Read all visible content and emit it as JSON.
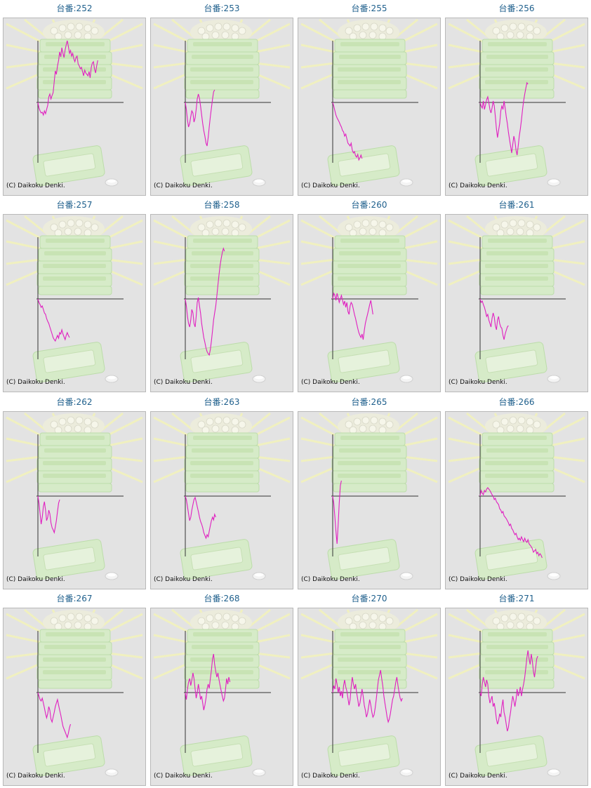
{
  "copyright": "(C) Daikoku Denki.",
  "line_color": "#e020c0",
  "chart_data": [
    {
      "type": "line",
      "title": "台番:252",
      "values": [
        0,
        -8,
        -12,
        -15,
        -14,
        -18,
        -12,
        -16,
        -10,
        -4,
        8,
        12,
        5,
        10,
        14,
        30,
        45,
        40,
        52,
        60,
        72,
        65,
        78,
        70,
        64,
        75,
        82,
        88,
        80,
        70,
        74,
        66,
        70,
        62,
        58,
        64,
        66,
        55,
        52,
        48,
        50,
        44,
        38,
        46,
        42,
        40,
        38,
        44,
        35,
        50,
        56,
        58,
        48,
        42,
        52,
        60
      ]
    },
    {
      "type": "line",
      "title": "台番:253",
      "values": [
        0,
        -10,
        -25,
        -35,
        -30,
        -20,
        -12,
        -15,
        -28,
        -22,
        -10,
        5,
        12,
        6,
        -5,
        -18,
        -30,
        -40,
        -48,
        -58,
        -62,
        -50,
        -35,
        -20,
        -8,
        5,
        15,
        18
      ]
    },
    {
      "type": "line",
      "title": "台番:255",
      "values": [
        0,
        -5,
        -12,
        -18,
        -22,
        -25,
        -28,
        -32,
        -35,
        -40,
        -42,
        -48,
        -45,
        -52,
        -58,
        -60,
        -62,
        -58,
        -68,
        -72,
        -70,
        -76,
        -78,
        -74,
        -82,
        -79,
        -75,
        -80
      ]
    },
    {
      "type": "line",
      "title": "台番:256",
      "values": [
        0,
        -5,
        -8,
        2,
        -10,
        -3,
        4,
        8,
        0,
        -10,
        -15,
        -8,
        2,
        -5,
        -20,
        -38,
        -50,
        -40,
        -30,
        -12,
        -5,
        -10,
        2,
        -8,
        -20,
        -30,
        -42,
        -52,
        -62,
        -72,
        -60,
        -48,
        -55,
        -68,
        -75,
        -62,
        -48,
        -38,
        -25,
        -10,
        2,
        12,
        20,
        28,
        26
      ]
    },
    {
      "type": "line",
      "title": "台番:257",
      "values": [
        0,
        -5,
        -8,
        -12,
        -10,
        -15,
        -20,
        -22,
        -28,
        -32,
        -35,
        -40,
        -45,
        -50,
        -55,
        -58,
        -60,
        -56,
        -52,
        -56,
        -48,
        -50,
        -44,
        -50,
        -54,
        -58,
        -52,
        -48,
        -52,
        -55
      ]
    },
    {
      "type": "line",
      "title": "台番:258",
      "values": [
        0,
        -10,
        -25,
        -35,
        -40,
        -30,
        -15,
        -20,
        -35,
        -40,
        -25,
        -5,
        2,
        -10,
        -20,
        -35,
        -45,
        -55,
        -62,
        -70,
        -75,
        -78,
        -80,
        -72,
        -60,
        -45,
        -30,
        -20,
        -10,
        5,
        20,
        35,
        48,
        58,
        66,
        72,
        68
      ]
    },
    {
      "type": "line",
      "title": "台番:260",
      "values": [
        0,
        8,
        5,
        -2,
        8,
        2,
        -5,
        0,
        5,
        -2,
        -8,
        -3,
        -12,
        -5,
        -18,
        -22,
        -10,
        -5,
        -8,
        -15,
        -22,
        -28,
        -35,
        -42,
        -48,
        -52,
        -55,
        -50,
        -58,
        -45,
        -35,
        -28,
        -22,
        -15,
        -8,
        -2,
        -12,
        -22
      ]
    },
    {
      "type": "line",
      "title": "台番:261",
      "values": [
        0,
        -5,
        -3,
        -8,
        -12,
        -18,
        -25,
        -22,
        -30,
        -35,
        -40,
        -28,
        -20,
        -26,
        -38,
        -44,
        -30,
        -25,
        -35,
        -40,
        -42,
        -52,
        -58,
        -50,
        -45,
        -40,
        -38
      ]
    },
    {
      "type": "line",
      "title": "台番:262",
      "values": [
        0,
        -10,
        -25,
        -40,
        -30,
        -15,
        -8,
        -20,
        -35,
        -30,
        -20,
        -25,
        -38,
        -45,
        -48,
        -52,
        -44,
        -35,
        -22,
        -10,
        -5
      ]
    },
    {
      "type": "line",
      "title": "台番:263",
      "values": [
        0,
        -5,
        -15,
        -25,
        -35,
        -30,
        -20,
        -12,
        -5,
        -2,
        -8,
        -15,
        -22,
        -30,
        -36,
        -40,
        -45,
        -52,
        -56,
        -60,
        -55,
        -58,
        -50,
        -42,
        -35,
        -30,
        -34,
        -26,
        -30
      ]
    },
    {
      "type": "line",
      "title": "台番:265",
      "values": [
        0,
        -10,
        -30,
        -50,
        -68,
        -40,
        -10,
        15,
        22
      ]
    },
    {
      "type": "line",
      "title": "台番:266",
      "values": [
        0,
        8,
        4,
        2,
        8,
        6,
        10,
        12,
        10,
        8,
        5,
        2,
        0,
        -5,
        -3,
        -8,
        -10,
        -12,
        -18,
        -20,
        -24,
        -22,
        -28,
        -30,
        -32,
        -35,
        -38,
        -42,
        -40,
        -46,
        -48,
        -52,
        -55,
        -53,
        -58,
        -62,
        -60,
        -63,
        -58,
        -62,
        -65,
        -60,
        -64,
        -66,
        -62,
        -68,
        -70,
        -72,
        -75,
        -80,
        -78,
        -76,
        -82,
        -80,
        -85,
        -82,
        -84,
        -88
      ]
    },
    {
      "type": "line",
      "title": "台番:267",
      "values": [
        0,
        -5,
        -10,
        -12,
        -8,
        -15,
        -22,
        -30,
        -36,
        -30,
        -20,
        -25,
        -38,
        -42,
        -35,
        -28,
        -20,
        -15,
        -10,
        -18,
        -25,
        -32,
        -40,
        -48,
        -52,
        -56,
        -60,
        -64,
        -58,
        -50,
        -45
      ]
    },
    {
      "type": "line",
      "title": "台番:268",
      "values": [
        0,
        -10,
        5,
        15,
        20,
        10,
        18,
        28,
        20,
        5,
        -8,
        0,
        12,
        2,
        -10,
        -5,
        -15,
        -25,
        -18,
        -8,
        5,
        12,
        6,
        20,
        32,
        48,
        55,
        40,
        30,
        22,
        28,
        18,
        10,
        2,
        -5,
        -12,
        -8,
        5,
        20,
        12,
        22,
        15
      ]
    },
    {
      "type": "line",
      "title": "台番:270",
      "values": [
        0,
        10,
        5,
        20,
        12,
        0,
        8,
        -5,
        2,
        -8,
        10,
        18,
        8,
        2,
        -8,
        -18,
        -10,
        8,
        22,
        12,
        5,
        12,
        0,
        -10,
        -20,
        -15,
        -5,
        5,
        -5,
        -18,
        -25,
        -35,
        -30,
        -20,
        -10,
        -18,
        -28,
        -35,
        -32,
        -22,
        -10,
        5,
        18,
        25,
        32,
        20,
        10,
        -5,
        -15,
        -25,
        -35,
        -42,
        -38,
        -30,
        -20,
        -10,
        -5,
        5,
        15,
        22,
        10,
        0,
        -8,
        -12,
        -8
      ]
    },
    {
      "type": "line",
      "title": "台番:271",
      "values": [
        0,
        -5,
        12,
        22,
        15,
        8,
        18,
        12,
        -5,
        -15,
        -10,
        -5,
        -20,
        -15,
        -25,
        -38,
        -45,
        -40,
        -30,
        -35,
        -20,
        -10,
        -28,
        -35,
        -45,
        -55,
        -50,
        -38,
        -28,
        -15,
        -5,
        -12,
        -20,
        -10,
        5,
        -5,
        0,
        8,
        -5,
        5,
        12,
        22,
        35,
        50,
        60,
        48,
        40,
        55,
        45,
        30,
        22,
        35,
        48,
        52
      ]
    }
  ]
}
